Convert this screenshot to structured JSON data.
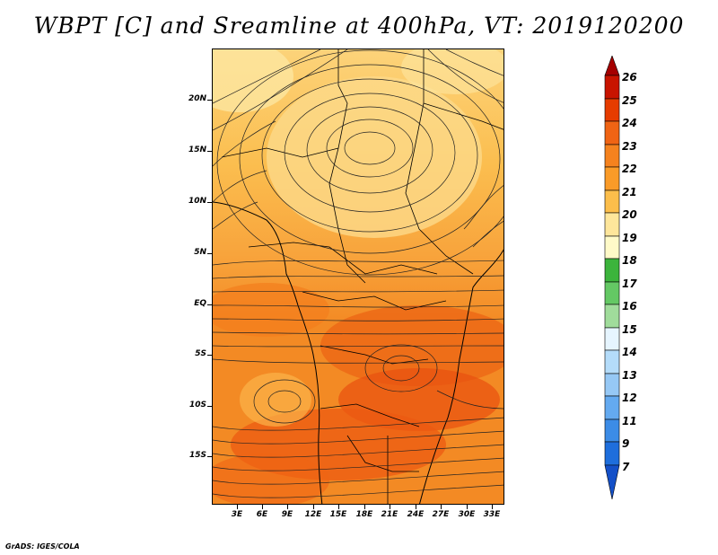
{
  "title": "WBPT [C] and Sreamline at 400hPa, VT: 2019120200",
  "credit": "GrADS: IGES/COLA",
  "map": {
    "lat_labels": [
      "20N",
      "15N",
      "10N",
      "5N",
      "EQ",
      "5S",
      "10S",
      "15S"
    ],
    "lon_labels": [
      "3E",
      "6E",
      "9E",
      "12E",
      "15E",
      "18E",
      "21E",
      "24E",
      "27E",
      "30E",
      "33E"
    ]
  },
  "colorbar": {
    "labels": [
      "26",
      "25",
      "24",
      "23",
      "22",
      "21",
      "20",
      "19",
      "18",
      "17",
      "16",
      "15",
      "14",
      "13",
      "12",
      "11",
      "9",
      "7"
    ],
    "colors": [
      "#a50000",
      "#c81400",
      "#e63c00",
      "#f06414",
      "#f5821e",
      "#fa9b28",
      "#fcbe4b",
      "#fee69b",
      "#fffac8",
      "#3cb43c",
      "#64c864",
      "#a0dc9b",
      "#e6f5ff",
      "#b4dcfa",
      "#96c8f5",
      "#64aaf0",
      "#3c8ce6",
      "#1e6edc",
      "#1450c8"
    ]
  }
}
